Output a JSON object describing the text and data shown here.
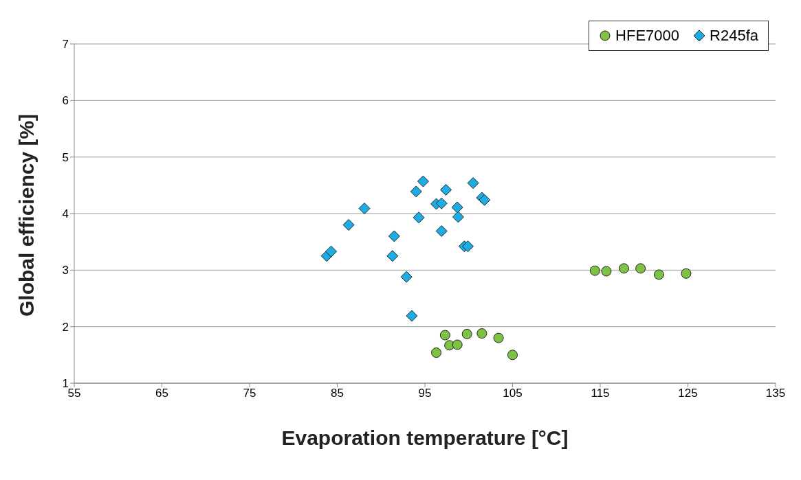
{
  "chart_data": {
    "type": "scatter",
    "xlabel": "Evaporation temperature [°C]",
    "ylabel": "Global efficiency [%]",
    "xlim": [
      55,
      135
    ],
    "xticks": [
      55,
      65,
      75,
      85,
      95,
      105,
      115,
      125,
      135
    ],
    "ylim": [
      1,
      7
    ],
    "yticks": [
      1,
      2,
      3,
      4,
      5,
      6,
      7
    ],
    "grid": "y",
    "legend": "top right",
    "series": [
      {
        "name": "HFE7000",
        "color": "#7dc242",
        "marker": "circle",
        "x": [
          96.3,
          97.3,
          97.8,
          98.7,
          99.8,
          101.5,
          103.4,
          105.0,
          114.4,
          115.7,
          117.7,
          119.6,
          121.7,
          124.8
        ],
        "values": [
          1.54,
          1.85,
          1.67,
          1.68,
          1.87,
          1.88,
          1.8,
          1.5,
          2.99,
          2.98,
          3.03,
          3.03,
          2.92,
          2.94
        ]
      },
      {
        "name": "R245fa",
        "color": "#1cade4",
        "marker": "diamond",
        "x": [
          83.8,
          84.3,
          86.3,
          88.1,
          91.3,
          91.5,
          92.9,
          93.5,
          94.0,
          94.3,
          94.8,
          96.3,
          96.9,
          96.9,
          97.4,
          98.7,
          98.8,
          99.5,
          99.9,
          100.5,
          101.5,
          101.8
        ],
        "values": [
          3.25,
          3.33,
          3.8,
          4.09,
          3.25,
          3.6,
          2.88,
          2.19,
          4.39,
          3.93,
          4.57,
          4.17,
          4.18,
          3.69,
          4.42,
          4.11,
          3.94,
          3.42,
          3.42,
          4.54,
          4.28,
          4.24
        ]
      }
    ]
  }
}
